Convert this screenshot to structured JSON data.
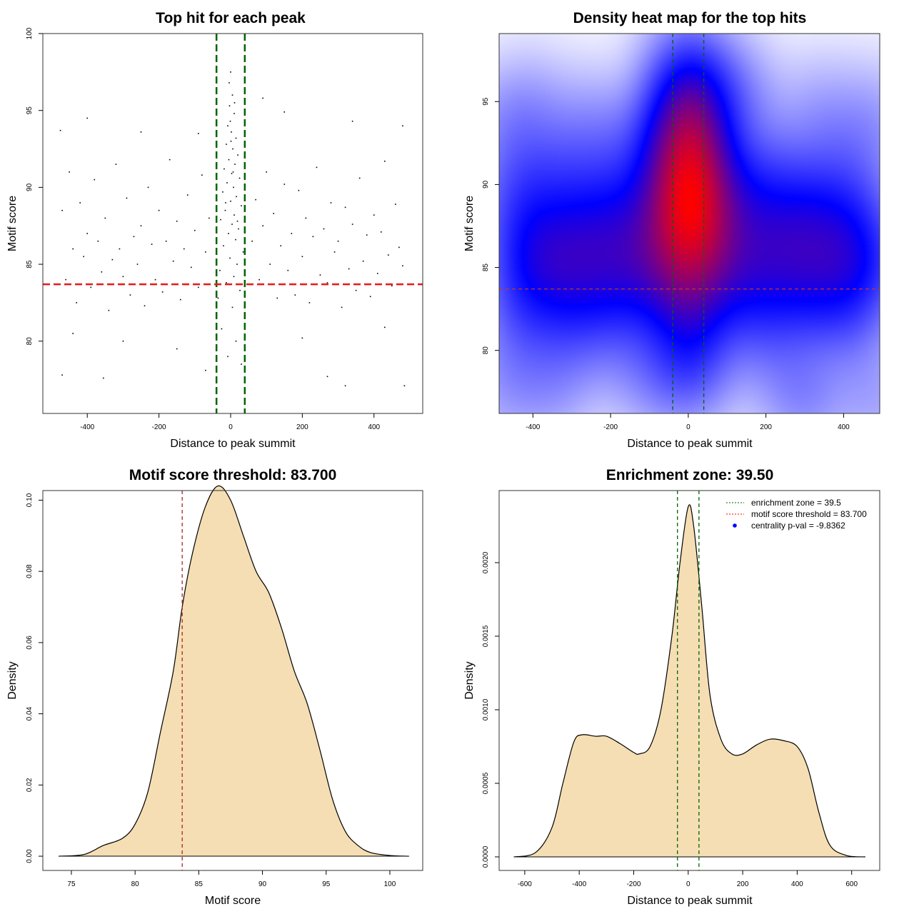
{
  "chart_data": [
    {
      "type": "scatter",
      "title": "Top hit for each peak",
      "xlabel": "Distance to peak summit",
      "ylabel": "Motif score",
      "xlim": [
        -524,
        536
      ],
      "ylim": [
        75.3,
        100
      ],
      "xticks": [
        -400,
        -200,
        0,
        200,
        400
      ],
      "xtick_labels": [
        "-400",
        "-200",
        "0",
        "200",
        "400"
      ],
      "yticks": [
        80,
        85,
        90,
        95,
        100
      ],
      "ytick_labels": [
        "80",
        "85",
        "90",
        "95",
        "100"
      ],
      "vlines": [
        -39.5,
        39.5
      ],
      "hline": 83.7,
      "vline_color": "#006400",
      "hline_color": "#e41a1c",
      "points": [
        [
          0,
          97.5
        ],
        [
          5,
          96
        ],
        [
          -3,
          95.3
        ],
        [
          10,
          94.8
        ],
        [
          -8,
          94
        ],
        [
          2,
          93.6
        ],
        [
          15,
          93.2
        ],
        [
          -12,
          92.8
        ],
        [
          6,
          92.5
        ],
        [
          20,
          92.1
        ],
        [
          -5,
          91.8
        ],
        [
          12,
          91.5
        ],
        [
          -18,
          91.2
        ],
        [
          3,
          90.9
        ],
        [
          25,
          90.6
        ],
        [
          -10,
          90.3
        ],
        [
          8,
          90
        ],
        [
          -22,
          89.7
        ],
        [
          16,
          89.4
        ],
        [
          0,
          89.1
        ],
        [
          30,
          88.8
        ],
        [
          -15,
          88.5
        ],
        [
          10,
          88.2
        ],
        [
          -28,
          87.9
        ],
        [
          4,
          87.6
        ],
        [
          22,
          87.3
        ],
        [
          -6,
          87
        ],
        [
          14,
          86.6
        ],
        [
          -20,
          86.2
        ],
        [
          35,
          85.8
        ],
        [
          -2,
          85.4
        ],
        [
          18,
          85
        ],
        [
          -30,
          84.6
        ],
        [
          9,
          84.2
        ],
        [
          -12,
          83.8
        ],
        [
          26,
          83.3
        ],
        [
          -35,
          82.8
        ],
        [
          5,
          82.2
        ],
        [
          40,
          81.5
        ],
        [
          -25,
          80.8
        ],
        [
          15,
          80
        ],
        [
          -8,
          79
        ],
        [
          30,
          78.5
        ],
        [
          1,
          93
        ],
        [
          11,
          95.5
        ],
        [
          -4,
          96.8
        ],
        [
          7,
          91
        ],
        [
          -14,
          89
        ],
        [
          19,
          87.8
        ],
        [
          -1,
          94.3
        ],
        [
          -470,
          88.5
        ],
        [
          -460,
          84
        ],
        [
          -450,
          91
        ],
        [
          -440,
          86
        ],
        [
          -430,
          82.5
        ],
        [
          -420,
          89
        ],
        [
          -410,
          85.5
        ],
        [
          -400,
          87
        ],
        [
          -390,
          83.5
        ],
        [
          -380,
          90.5
        ],
        [
          -370,
          86.5
        ],
        [
          -360,
          84.5
        ],
        [
          -350,
          88
        ],
        [
          -340,
          82
        ],
        [
          -330,
          85.3
        ],
        [
          -320,
          91.5
        ],
        [
          -310,
          86
        ],
        [
          -300,
          84.2
        ],
        [
          -290,
          89.3
        ],
        [
          -280,
          83
        ],
        [
          -270,
          86.8
        ],
        [
          -260,
          85
        ],
        [
          -250,
          87.5
        ],
        [
          -240,
          82.3
        ],
        [
          -230,
          90
        ],
        [
          -220,
          86.3
        ],
        [
          -210,
          84
        ],
        [
          -200,
          88.5
        ],
        [
          -190,
          83.2
        ],
        [
          -180,
          86.5
        ],
        [
          -170,
          91.8
        ],
        [
          -160,
          85.2
        ],
        [
          -150,
          87.8
        ],
        [
          -140,
          82.7
        ],
        [
          -130,
          86
        ],
        [
          -120,
          89.5
        ],
        [
          -110,
          84.8
        ],
        [
          -100,
          87.2
        ],
        [
          -90,
          83.5
        ],
        [
          -80,
          90.8
        ],
        [
          -70,
          85.8
        ],
        [
          -60,
          88
        ],
        [
          60,
          86.5
        ],
        [
          70,
          89.2
        ],
        [
          80,
          84
        ],
        [
          90,
          87.5
        ],
        [
          100,
          91
        ],
        [
          110,
          85
        ],
        [
          120,
          88.3
        ],
        [
          130,
          82.8
        ],
        [
          140,
          86.2
        ],
        [
          150,
          90.2
        ],
        [
          160,
          84.6
        ],
        [
          170,
          87
        ],
        [
          180,
          83
        ],
        [
          190,
          89.8
        ],
        [
          200,
          85.5
        ],
        [
          210,
          88
        ],
        [
          220,
          82.5
        ],
        [
          230,
          86.8
        ],
        [
          240,
          91.3
        ],
        [
          250,
          84.3
        ],
        [
          260,
          87.3
        ],
        [
          270,
          83.8
        ],
        [
          280,
          89
        ],
        [
          290,
          85.8
        ],
        [
          300,
          86.5
        ],
        [
          310,
          82.2
        ],
        [
          320,
          88.7
        ],
        [
          330,
          84.7
        ],
        [
          340,
          87.6
        ],
        [
          350,
          83.3
        ],
        [
          360,
          90.6
        ],
        [
          370,
          85.2
        ],
        [
          380,
          86.9
        ],
        [
          390,
          82.9
        ],
        [
          400,
          88.2
        ],
        [
          410,
          84.4
        ],
        [
          420,
          87.1
        ],
        [
          430,
          91.7
        ],
        [
          440,
          85.6
        ],
        [
          450,
          83.6
        ],
        [
          460,
          88.9
        ],
        [
          470,
          86.1
        ],
        [
          480,
          84.9
        ],
        [
          -475,
          93.7
        ],
        [
          -440,
          80.5
        ],
        [
          -355,
          77.6
        ],
        [
          -300,
          80
        ],
        [
          -250,
          93.6
        ],
        [
          -150,
          79.5
        ],
        [
          -90,
          93.5
        ],
        [
          -70,
          78.1
        ],
        [
          90,
          95.8
        ],
        [
          150,
          94.9
        ],
        [
          200,
          80.2
        ],
        [
          270,
          77.7
        ],
        [
          320,
          77.1
        ],
        [
          340,
          94.3
        ],
        [
          430,
          80.9
        ],
        [
          480,
          94
        ],
        [
          485,
          77.1
        ],
        [
          -470,
          77.8
        ],
        [
          -400,
          94.5
        ]
      ]
    },
    {
      "type": "heatmap",
      "title": "Density heat map for the top hits",
      "xlabel": "Distance to peak summit",
      "ylabel": "Motif score",
      "xlim": [
        -487,
        493
      ],
      "ylim": [
        76.2,
        99.1
      ],
      "xticks": [
        -400,
        -200,
        0,
        200,
        400
      ],
      "xtick_labels": [
        "-400",
        "-200",
        "0",
        "200",
        "400"
      ],
      "yticks": [
        80,
        85,
        90,
        95
      ],
      "ytick_labels": [
        "80",
        "85",
        "90",
        "95"
      ],
      "vlines": [
        -40,
        40
      ],
      "hline": 83.7,
      "colors": [
        "#ffffff",
        "#0000ff",
        "#ff0000"
      ],
      "vline_color": "#006400",
      "hline_color": "#c0392b"
    },
    {
      "type": "area",
      "title": "Motif score threshold: 83.700",
      "xlabel": "Motif score",
      "ylabel": "Density",
      "xlim": [
        72.76,
        102.58
      ],
      "ylim": [
        -0.004,
        0.1027
      ],
      "xticks": [
        75,
        80,
        85,
        90,
        95,
        100
      ],
      "xtick_labels": [
        "75",
        "80",
        "85",
        "90",
        "95",
        "100"
      ],
      "yticks": [
        0,
        0.02,
        0.04,
        0.06,
        0.08,
        0.1
      ],
      "ytick_labels": [
        "0.00",
        "0.02",
        "0.04",
        "0.06",
        "0.08",
        "0.10"
      ],
      "vlines": [
        83.7
      ],
      "vline_color": "#b22222",
      "fill": "#f5deb3",
      "x": [
        74,
        76,
        77.5,
        79,
        80,
        81,
        82,
        83,
        83.7,
        84.5,
        85.5,
        86.5,
        87.5,
        88.5,
        89.5,
        90.5,
        91.5,
        92.5,
        93.5,
        94.5,
        95.5,
        96.5,
        97.5,
        98.5,
        100,
        101.5
      ],
      "y": [
        0,
        0.0005,
        0.003,
        0.005,
        0.009,
        0.018,
        0.035,
        0.052,
        0.07,
        0.085,
        0.098,
        0.104,
        0.1,
        0.09,
        0.08,
        0.074,
        0.064,
        0.052,
        0.043,
        0.03,
        0.016,
        0.007,
        0.003,
        0.001,
        0.0002,
        0
      ]
    },
    {
      "type": "area",
      "title": "Enrichment zone: 39.50",
      "xlabel": "Distance to peak summit",
      "ylabel": "Density",
      "xlim": [
        -694,
        703
      ],
      "ylim": [
        -9.22e-05,
        0.00249
      ],
      "xticks": [
        -600,
        -400,
        -200,
        0,
        200,
        400,
        600
      ],
      "xtick_labels": [
        "-600",
        "-400",
        "-200",
        "0",
        "200",
        "400",
        "600"
      ],
      "yticks": [
        0,
        0.0005,
        0.001,
        0.0015,
        0.002
      ],
      "ytick_labels": [
        "0.0000",
        "0.0005",
        "0.0010",
        "0.0015",
        "0.0020"
      ],
      "vlines": [
        -39.5,
        39.5
      ],
      "vline_color": "#006400",
      "fill": "#f5deb3",
      "x": [
        -640,
        -560,
        -500,
        -460,
        -420,
        -390,
        -340,
        -300,
        -250,
        -200,
        -180,
        -140,
        -100,
        -60,
        -30,
        0,
        20,
        50,
        80,
        120,
        160,
        200,
        250,
        300,
        350,
        400,
        440,
        480,
        520,
        580,
        650
      ],
      "y": [
        0,
        3e-05,
        0.0002,
        0.0005,
        0.00078,
        0.00083,
        0.00082,
        0.00082,
        0.00077,
        0.00071,
        0.0007,
        0.00075,
        0.001,
        0.0015,
        0.002,
        0.00238,
        0.00225,
        0.0017,
        0.0011,
        0.0008,
        0.0007,
        0.0007,
        0.00076,
        0.0008,
        0.00079,
        0.00075,
        0.0006,
        0.0003,
        8e-05,
        1e-05,
        0
      ],
      "legend": {
        "position": "top-right",
        "entries": [
          {
            "label": "enrichment zone = 39.5",
            "color": "#006400",
            "kind": "dotted-line"
          },
          {
            "label": "motif score threshold = 83.700",
            "color": "#ff0000",
            "kind": "dotted-line"
          },
          {
            "label": "centrality p-val = -9.8362",
            "color": "#0000ff",
            "kind": "point"
          }
        ]
      }
    }
  ]
}
